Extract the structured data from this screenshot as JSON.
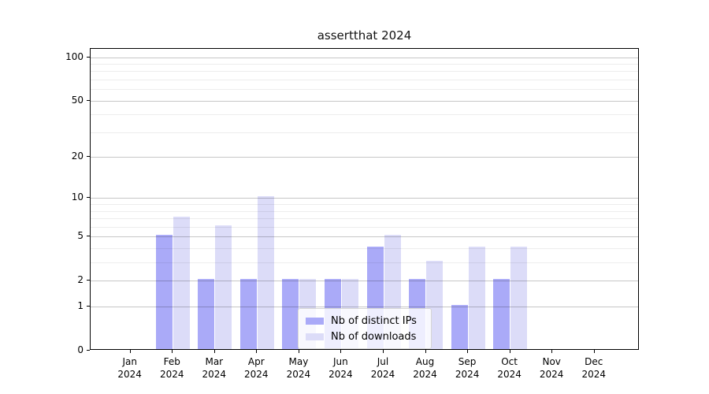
{
  "chart_data": {
    "type": "bar",
    "title": "assertthat 2024",
    "categories": [
      "Jan 2024",
      "Feb 2024",
      "Mar 2024",
      "Apr 2024",
      "May 2024",
      "Jun 2024",
      "Jul 2024",
      "Aug 2024",
      "Sep 2024",
      "Oct 2024",
      "Nov 2024",
      "Dec 2024"
    ],
    "series": [
      {
        "name": "Nb of distinct IPs",
        "color": "#aaaaf8",
        "values": [
          0,
          5,
          2,
          2,
          2,
          2,
          4,
          2,
          1,
          2,
          0,
          0
        ]
      },
      {
        "name": "Nb of downloads",
        "color": "#dcdcf8",
        "values": [
          0,
          7,
          6,
          10,
          2,
          2,
          5,
          3,
          4,
          4,
          0,
          0
        ]
      }
    ],
    "xlabel": "",
    "ylabel": "",
    "yscale": "log1p",
    "ylim": [
      0,
      114
    ],
    "yticks": [
      0,
      1,
      2,
      5,
      10,
      20,
      50,
      100
    ],
    "minor_yticks": [
      3,
      4,
      6,
      7,
      8,
      9,
      30,
      40,
      60,
      70,
      80,
      90
    ],
    "grid": "horizontal",
    "legend_position": "lower-center"
  }
}
